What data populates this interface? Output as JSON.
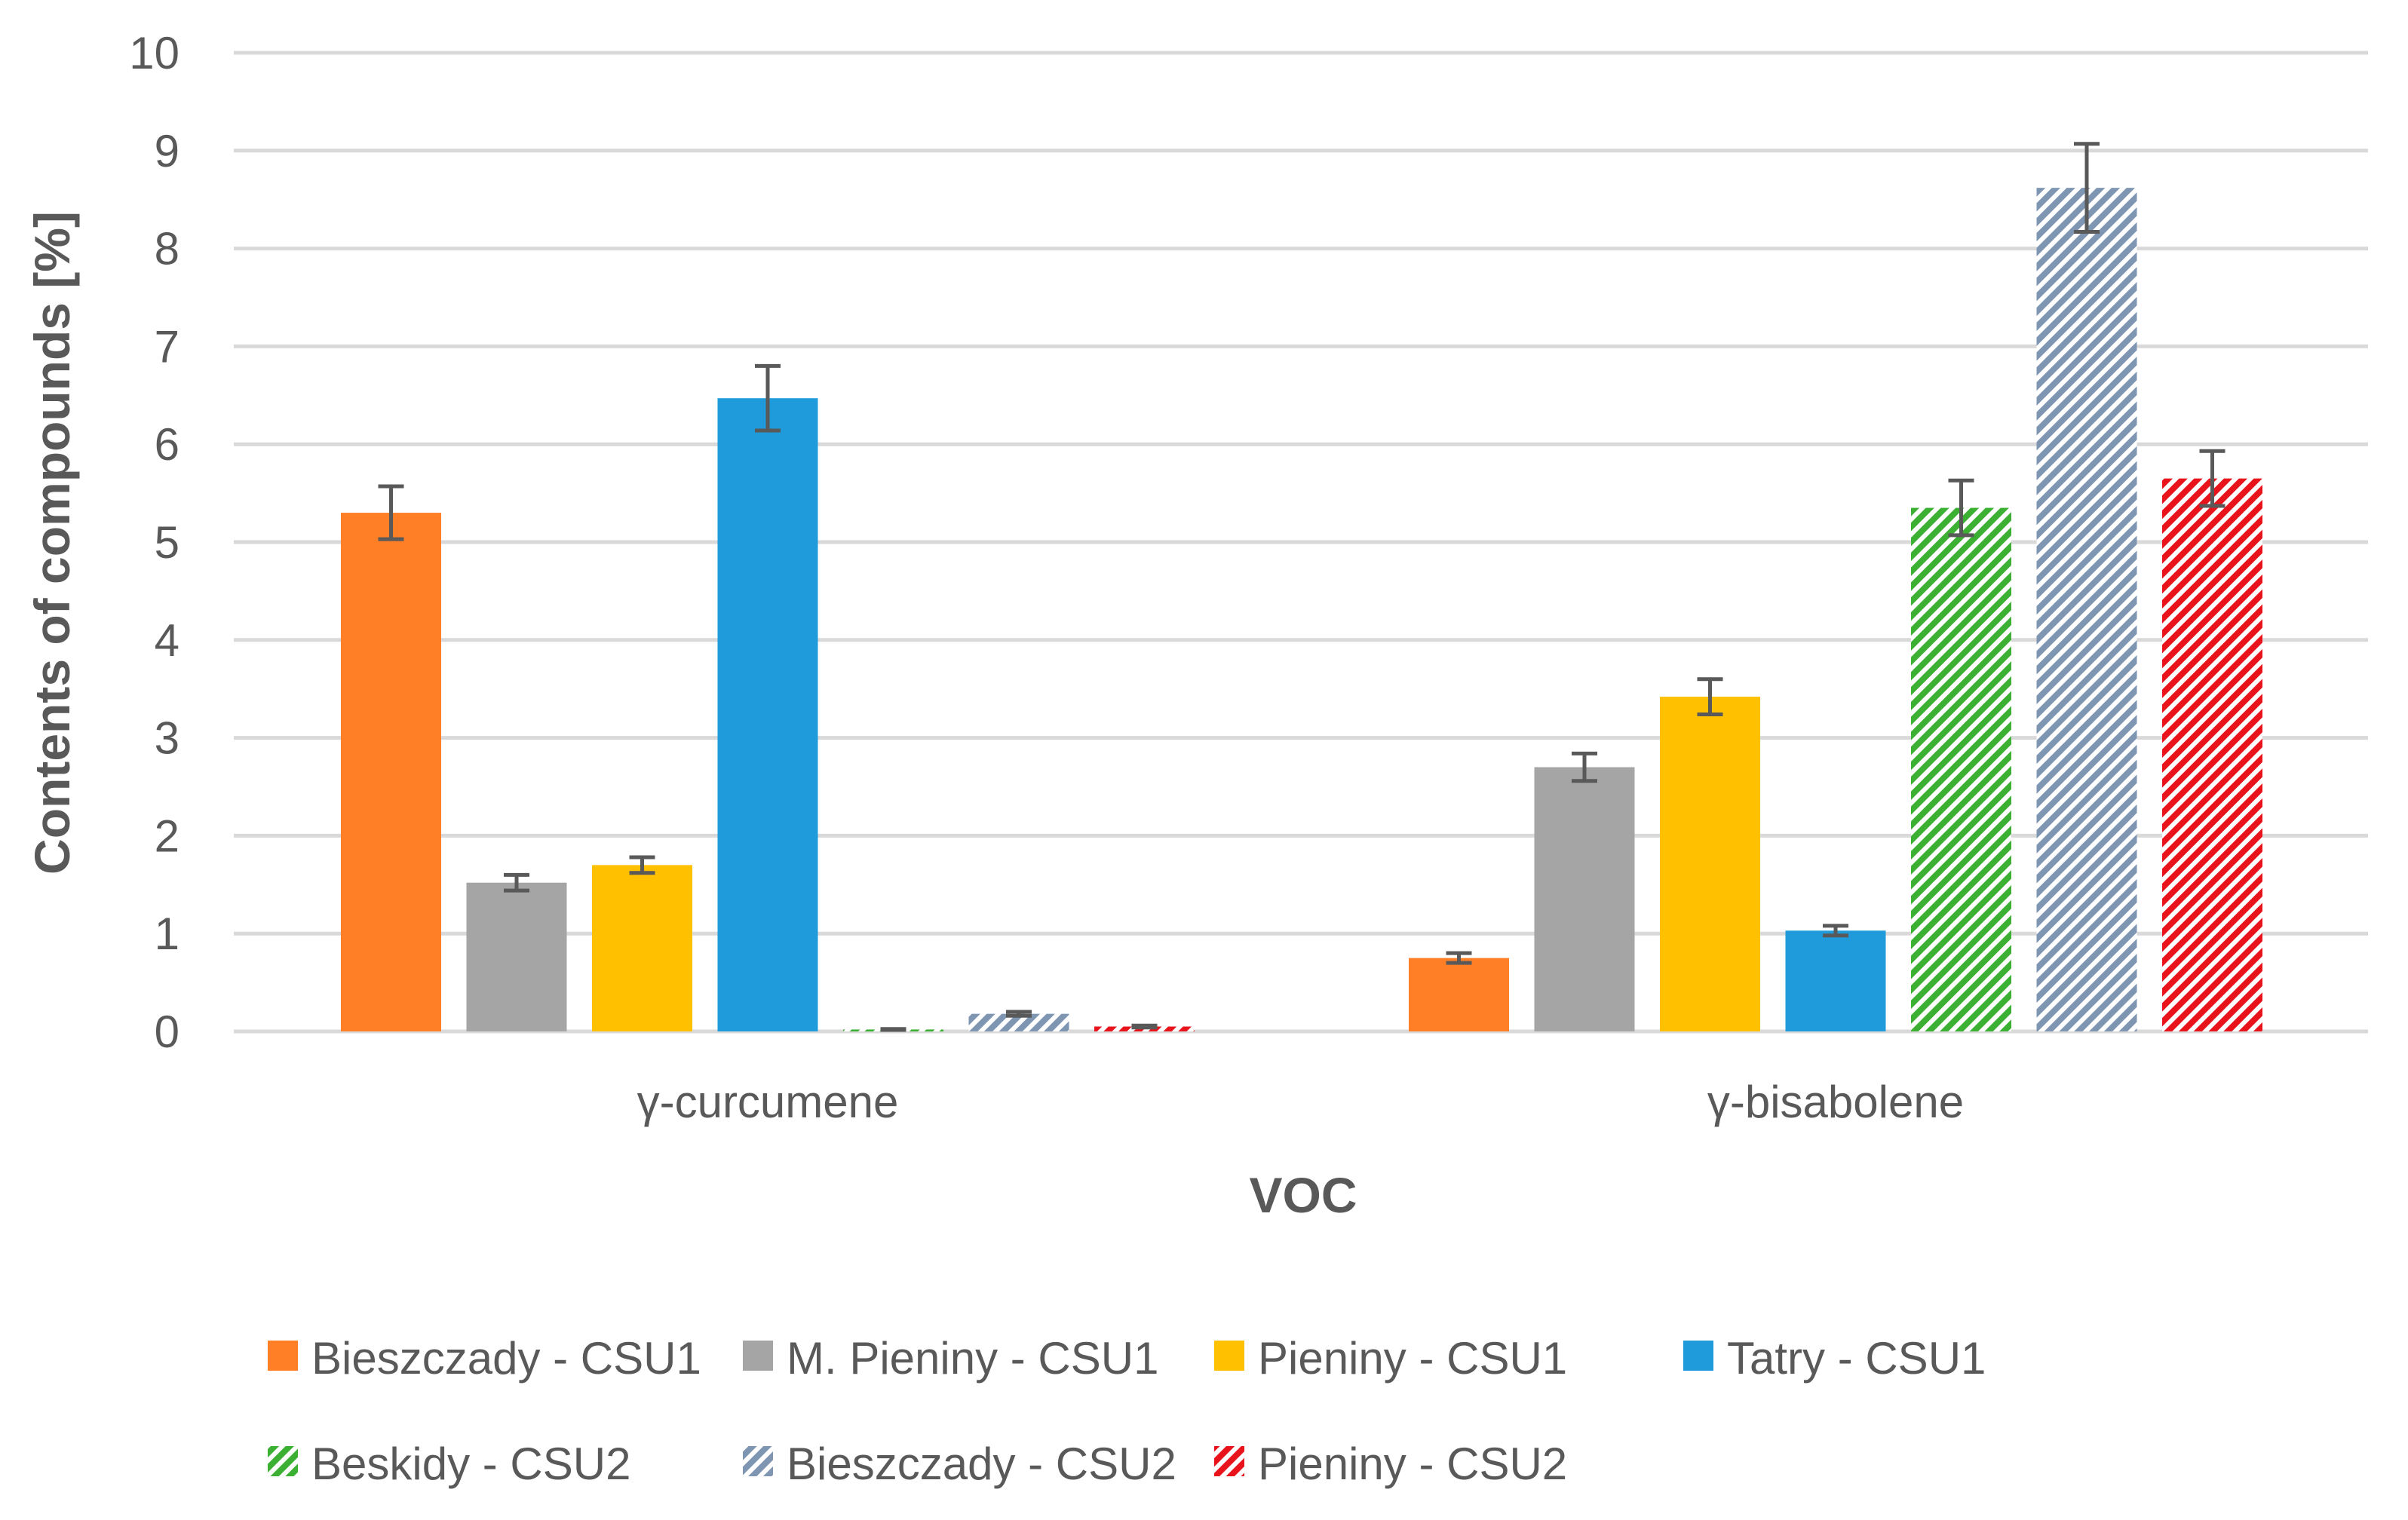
{
  "chart_data": {
    "type": "bar",
    "title": "",
    "xlabel": "VOC",
    "ylabel": "Contents of compounds [%]",
    "ylim": [
      0,
      10
    ],
    "yticks": [
      0,
      1,
      2,
      3,
      4,
      5,
      6,
      7,
      8,
      9,
      10
    ],
    "grid": true,
    "legend_position": "bottom",
    "categories": [
      "γ-curcumene",
      "γ-bisabolene"
    ],
    "series": [
      {
        "name": "Bieszczady - CSU1",
        "color": "#FF7F27",
        "pattern": "solid",
        "values": [
          5.3,
          0.75
        ],
        "errors": [
          0.27,
          0.05
        ]
      },
      {
        "name": "M. Pieniny - CSU1",
        "color": "#A5A5A5",
        "pattern": "solid",
        "values": [
          1.52,
          2.7
        ],
        "errors": [
          0.08,
          0.14
        ]
      },
      {
        "name": "Pieniny - CSU1",
        "color": "#FFC000",
        "pattern": "solid",
        "values": [
          1.7,
          3.42
        ],
        "errors": [
          0.08,
          0.18
        ]
      },
      {
        "name": "Tatry - CSU1",
        "color": "#1F9BDB",
        "pattern": "solid",
        "values": [
          6.47,
          1.03
        ],
        "errors": [
          0.33,
          0.05
        ]
      },
      {
        "name": "Beskidy - CSU2",
        "color": "#3CB033",
        "pattern": "hatch",
        "values": [
          0.02,
          5.35
        ],
        "errors": [
          0.005,
          0.28
        ]
      },
      {
        "name": "Bieszczady - CSU2",
        "color": "#7F96B2",
        "pattern": "hatch",
        "values": [
          0.18,
          8.62
        ],
        "errors": [
          0.02,
          0.45
        ]
      },
      {
        "name": "Pieniny - CSU2",
        "color": "#E8131B",
        "pattern": "hatch",
        "values": [
          0.05,
          5.65
        ],
        "errors": [
          0.01,
          0.28
        ]
      }
    ]
  }
}
